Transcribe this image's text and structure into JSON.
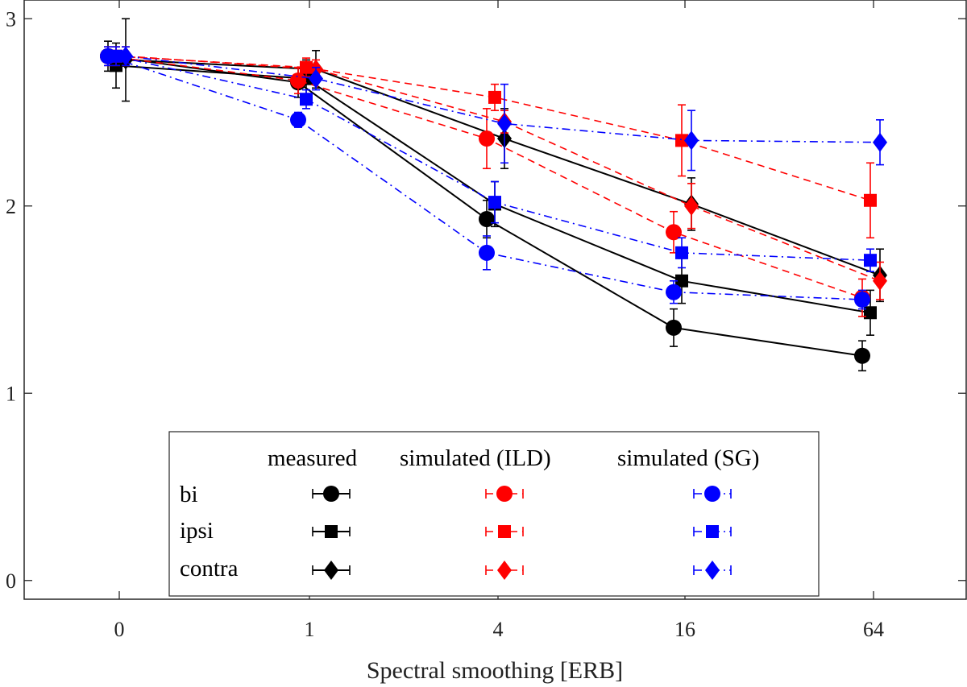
{
  "chart_data": {
    "type": "line",
    "title": "",
    "xlabel": "Spectral smoothing [ERB]",
    "ylabel": "",
    "categories": [
      "0",
      "1",
      "4",
      "16",
      "64"
    ],
    "ylim": [
      -0.1,
      3.1
    ],
    "yticks": [
      0,
      1,
      2,
      3
    ],
    "grid": false,
    "legend": {
      "placement": "bottom-center",
      "columns": [
        "measured",
        "simulated (ILD)",
        "simulated (SG)"
      ],
      "rows": [
        "bi",
        "ipsi",
        "contra"
      ]
    },
    "colors": {
      "measured": "#000000",
      "ild": "#ff0000",
      "sg": "#0000ff"
    },
    "series": [
      {
        "name": "measured bi",
        "group": "measured",
        "condition": "bi",
        "marker": "circle",
        "line": "solid",
        "values": [
          2.8,
          2.66,
          1.93,
          1.35,
          1.2
        ],
        "errors": [
          0.08,
          0.08,
          0.1,
          0.1,
          0.08
        ]
      },
      {
        "name": "measured ipsi",
        "group": "measured",
        "condition": "ipsi",
        "marker": "square",
        "line": "solid",
        "values": [
          2.75,
          2.68,
          2.01,
          1.6,
          1.43
        ],
        "errors": [
          0.12,
          0.1,
          0.12,
          0.12,
          0.12
        ]
      },
      {
        "name": "measured contra",
        "group": "measured",
        "condition": "contra",
        "marker": "diamond",
        "line": "solid",
        "values": [
          2.78,
          2.73,
          2.36,
          2.01,
          1.63
        ],
        "errors": [
          0.22,
          0.1,
          0.16,
          0.14,
          0.14
        ]
      },
      {
        "name": "simulated (ILD) bi",
        "group": "ild",
        "condition": "bi",
        "marker": "circle",
        "line": "dashed",
        "values": [
          2.8,
          2.67,
          2.36,
          1.86,
          1.51
        ],
        "errors": [
          0.05,
          0.07,
          0.16,
          0.11,
          0.1
        ]
      },
      {
        "name": "simulated (ILD) ipsi",
        "group": "ild",
        "condition": "ipsi",
        "marker": "square",
        "line": "dashed",
        "values": [
          2.8,
          2.74,
          2.58,
          2.35,
          2.03
        ],
        "errors": [
          0.05,
          0.05,
          0.07,
          0.19,
          0.2
        ]
      },
      {
        "name": "simulated (ILD) contra",
        "group": "ild",
        "condition": "contra",
        "marker": "diamond",
        "line": "dashed",
        "values": [
          2.8,
          2.73,
          2.45,
          2.0,
          1.6
        ],
        "errors": [
          0.05,
          0.05,
          0.06,
          0.12,
          0.1
        ]
      },
      {
        "name": "simulated (SG) bi",
        "group": "sg",
        "condition": "bi",
        "marker": "circle",
        "line": "dashdot",
        "values": [
          2.8,
          2.46,
          1.75,
          1.54,
          1.5
        ],
        "errors": [
          0.05,
          0.04,
          0.09,
          0.06,
          0.05
        ]
      },
      {
        "name": "simulated (SG) ipsi",
        "group": "sg",
        "condition": "ipsi",
        "marker": "square",
        "line": "dashdot",
        "values": [
          2.8,
          2.57,
          2.02,
          1.75,
          1.71
        ],
        "errors": [
          0.05,
          0.05,
          0.11,
          0.08,
          0.06
        ]
      },
      {
        "name": "simulated (SG) contra",
        "group": "sg",
        "condition": "contra",
        "marker": "diamond",
        "line": "dashdot",
        "values": [
          2.8,
          2.68,
          2.44,
          2.35,
          2.34
        ],
        "errors": [
          0.05,
          0.06,
          0.21,
          0.16,
          0.12
        ]
      }
    ]
  }
}
